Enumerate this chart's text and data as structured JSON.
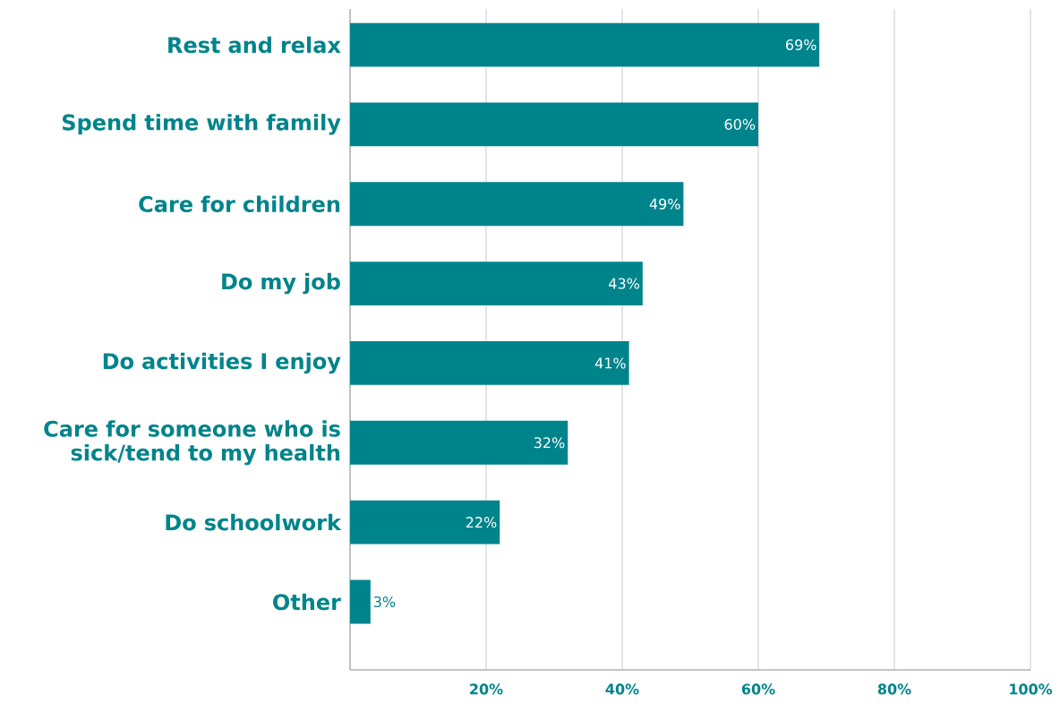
{
  "chart_data": {
    "type": "bar",
    "orientation": "horizontal",
    "categories": [
      "Rest and relax",
      "Spend time with family",
      "Care for children",
      "Do my job",
      "Do activities I enjoy",
      "Care for someone who is sick/tend  to my health",
      "Do schoolwork",
      "Other"
    ],
    "values": [
      69,
      60,
      49,
      43,
      41,
      32,
      22,
      3
    ],
    "value_labels": [
      "69%",
      "60%",
      "49%",
      "43%",
      "41%",
      "32%",
      "22%",
      "3%"
    ],
    "color": "#00848b",
    "xlim": [
      0,
      100
    ],
    "xticks": [
      {
        "value": 20,
        "label": "20%"
      },
      {
        "value": 40,
        "label": "40%"
      },
      {
        "value": 60,
        "label": "60%"
      },
      {
        "value": 80,
        "label": "80%"
      },
      {
        "value": 100,
        "label": "100%"
      }
    ],
    "grid": "x"
  }
}
